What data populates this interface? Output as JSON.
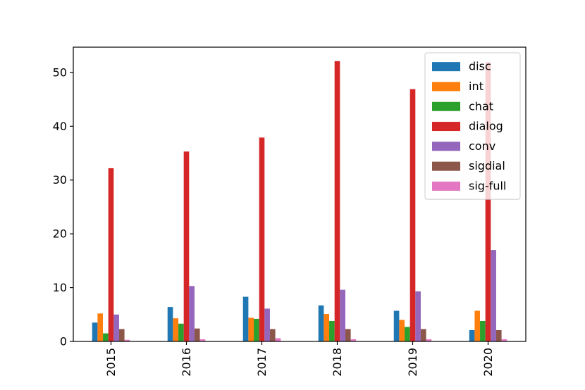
{
  "chart_data": {
    "type": "bar",
    "title": "",
    "xlabel": "",
    "ylabel": "",
    "categories": [
      "2015",
      "2016",
      "2017",
      "2018",
      "2019",
      "2020"
    ],
    "series": [
      {
        "name": "disc",
        "color": "#1f77b4",
        "values": [
          3.5,
          6.4,
          8.3,
          6.7,
          5.7,
          2.1
        ]
      },
      {
        "name": "int",
        "color": "#ff7f0e",
        "values": [
          5.2,
          4.3,
          4.4,
          5.1,
          4.0,
          5.7
        ]
      },
      {
        "name": "chat",
        "color": "#2ca02c",
        "values": [
          1.5,
          3.3,
          4.2,
          3.8,
          2.7,
          3.8
        ]
      },
      {
        "name": "dialog",
        "color": "#d62728",
        "values": [
          32.2,
          35.3,
          37.9,
          52.1,
          46.9,
          51.9
        ]
      },
      {
        "name": "conv",
        "color": "#9467bd",
        "values": [
          5.0,
          10.3,
          6.1,
          9.6,
          9.3,
          17.0
        ]
      },
      {
        "name": "sigdial",
        "color": "#8c564b",
        "values": [
          2.3,
          2.4,
          2.3,
          2.3,
          2.3,
          2.1
        ]
      },
      {
        "name": "sig-full",
        "color": "#e377c2",
        "values": [
          0.3,
          0.4,
          0.6,
          0.4,
          0.4,
          0.4
        ]
      }
    ],
    "ylim": [
      0,
      54.7
    ],
    "yticks": [
      "0",
      "10",
      "20",
      "30",
      "40",
      "50"
    ],
    "legend_position": "top-right",
    "grid": false
  }
}
